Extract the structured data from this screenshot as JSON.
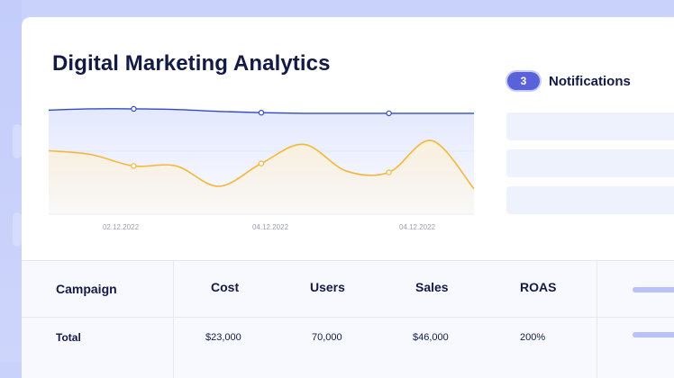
{
  "dashboard": {
    "title": "Digital Marketing Analytics"
  },
  "notifications": {
    "count": "3",
    "label": "Notifications"
  },
  "chart_data": {
    "type": "line",
    "title": "",
    "xlabel": "",
    "ylabel": "",
    "x_tick_labels": [
      "02.12.2022",
      "04.12.2022",
      "04.12.2022"
    ],
    "grid": true,
    "legend": "none",
    "series": [
      {
        "color": "#2f4bc7",
        "fill": "#e3e8fd",
        "values": [
          82,
          83,
          83,
          82.5,
          81,
          80,
          79.5,
          79.5,
          79.5,
          79.5,
          79.5
        ],
        "markers": [
          2,
          5,
          8
        ]
      },
      {
        "color": "#f5b73a",
        "fill": "#fbf1dc",
        "values": [
          50,
          47,
          38,
          38,
          22,
          40,
          55,
          34,
          33,
          58,
          20
        ],
        "markers": [
          2,
          5,
          8
        ]
      }
    ]
  },
  "table": {
    "headers": [
      "Campaign",
      "Cost",
      "Users",
      "Sales",
      "ROAS"
    ],
    "rows": [
      [
        "Total",
        "$23,000",
        "70,000",
        "$46,000",
        "200%"
      ]
    ]
  }
}
